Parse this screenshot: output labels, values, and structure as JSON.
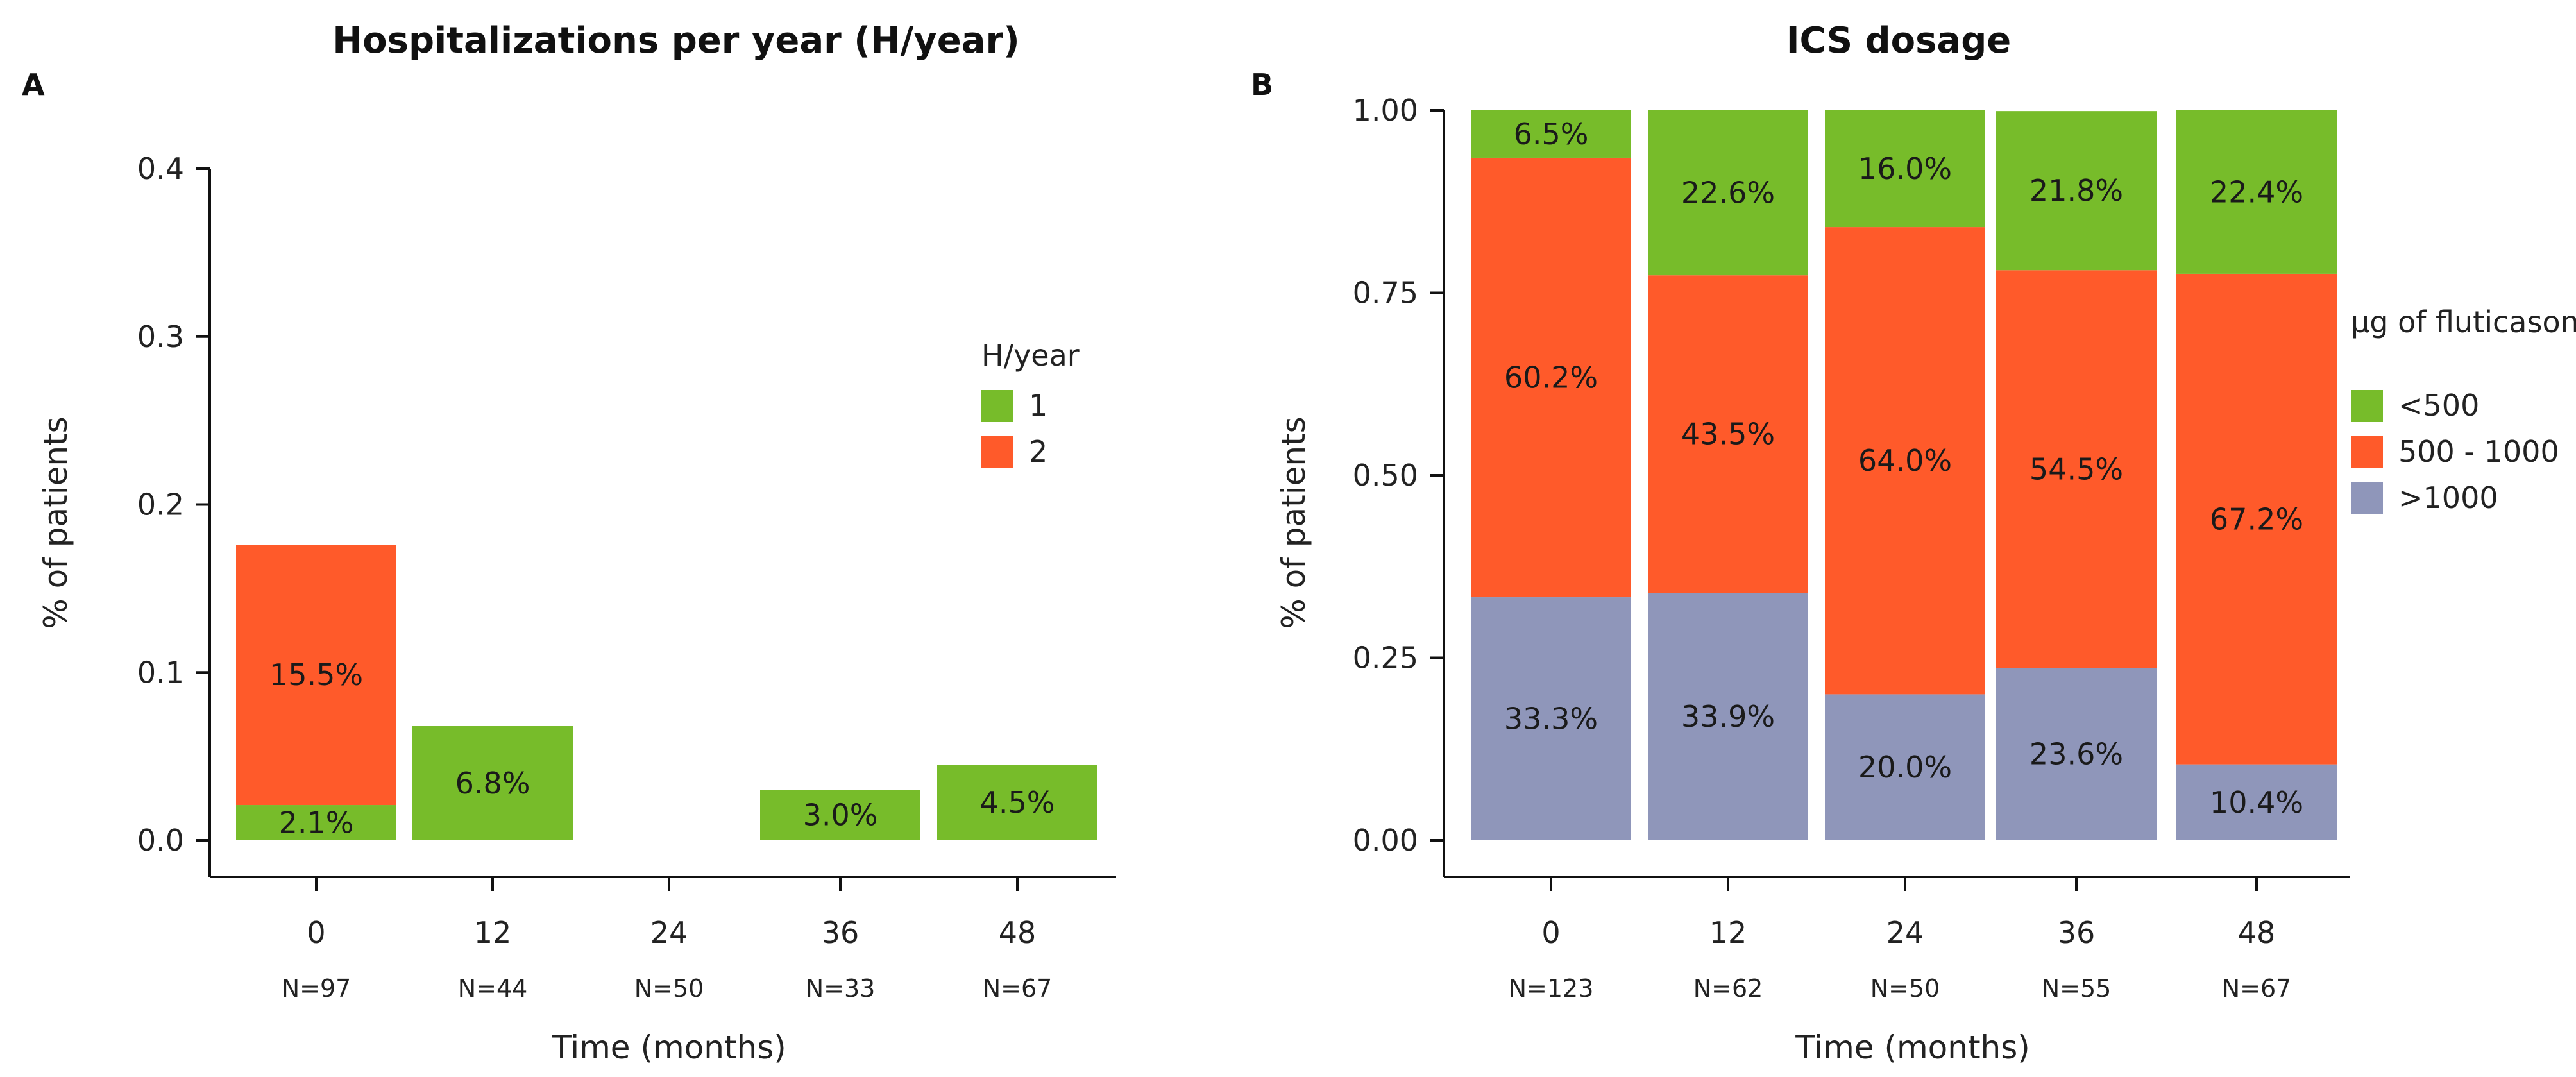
{
  "chart_data": [
    {
      "panel": "A",
      "type": "bar",
      "stacked": true,
      "title": "Hospitalizations per year (H/year)",
      "xlabel": "Time (months)",
      "ylabel": "% of patients",
      "ylim": [
        0,
        0.4
      ],
      "yticks": [
        "0.0",
        "0.1",
        "0.2",
        "0.3",
        "0.4"
      ],
      "ytick_values": [
        0,
        0.1,
        0.2,
        0.3,
        0.4
      ],
      "categories": [
        "0",
        "12",
        "24",
        "36",
        "48"
      ],
      "n_labels": [
        "N=97",
        "N=44",
        "N=50",
        "N=33",
        "N=67"
      ],
      "legend_title": "H/year",
      "series": [
        {
          "name": "1",
          "color": "#77BC2A",
          "values": [
            0.021,
            0.068,
            0,
            0.03,
            0.045
          ],
          "labels": [
            "2.1%",
            "6.8%",
            "",
            "3.0%",
            "4.5%"
          ]
        },
        {
          "name": "2",
          "color": "#FF5A2A",
          "values": [
            0.155,
            0,
            0,
            0,
            0
          ],
          "labels": [
            "15.5%",
            "",
            "",
            "",
            ""
          ]
        }
      ]
    },
    {
      "panel": "B",
      "type": "bar",
      "stacked": true,
      "title": "ICS dosage",
      "xlabel": "Time (months)",
      "ylabel": "% of patients",
      "ylim": [
        0,
        1
      ],
      "yticks": [
        "0.00",
        "0.25",
        "0.50",
        "0.75",
        "1.00"
      ],
      "ytick_values": [
        0,
        0.25,
        0.5,
        0.75,
        1
      ],
      "categories": [
        "0",
        "12",
        "24",
        "36",
        "48"
      ],
      "n_labels": [
        "N=123",
        "N=62",
        "N=50",
        "N=55",
        "N=67"
      ],
      "legend_title": "µg of fluticasone",
      "series": [
        {
          "name": ">1000",
          "color": "#8F96BA",
          "values": [
            0.333,
            0.339,
            0.2,
            0.236,
            0.104
          ],
          "labels": [
            "33.3%",
            "33.9%",
            "20.0%",
            "23.6%",
            "10.4%"
          ]
        },
        {
          "name": "500 - 1000",
          "color": "#FF5A2A",
          "values": [
            0.602,
            0.435,
            0.64,
            0.545,
            0.672
          ],
          "labels": [
            "60.2%",
            "43.5%",
            "64.0%",
            "54.5%",
            "67.2%"
          ]
        },
        {
          "name": "<500",
          "color": "#77BC2A",
          "values": [
            0.065,
            0.226,
            0.16,
            0.218,
            0.224
          ],
          "labels": [
            "6.5%",
            "22.6%",
            "16.0%",
            "21.8%",
            "22.4%"
          ]
        }
      ],
      "legend_order": [
        "<500",
        "500 - 1000",
        ">1000"
      ]
    }
  ]
}
